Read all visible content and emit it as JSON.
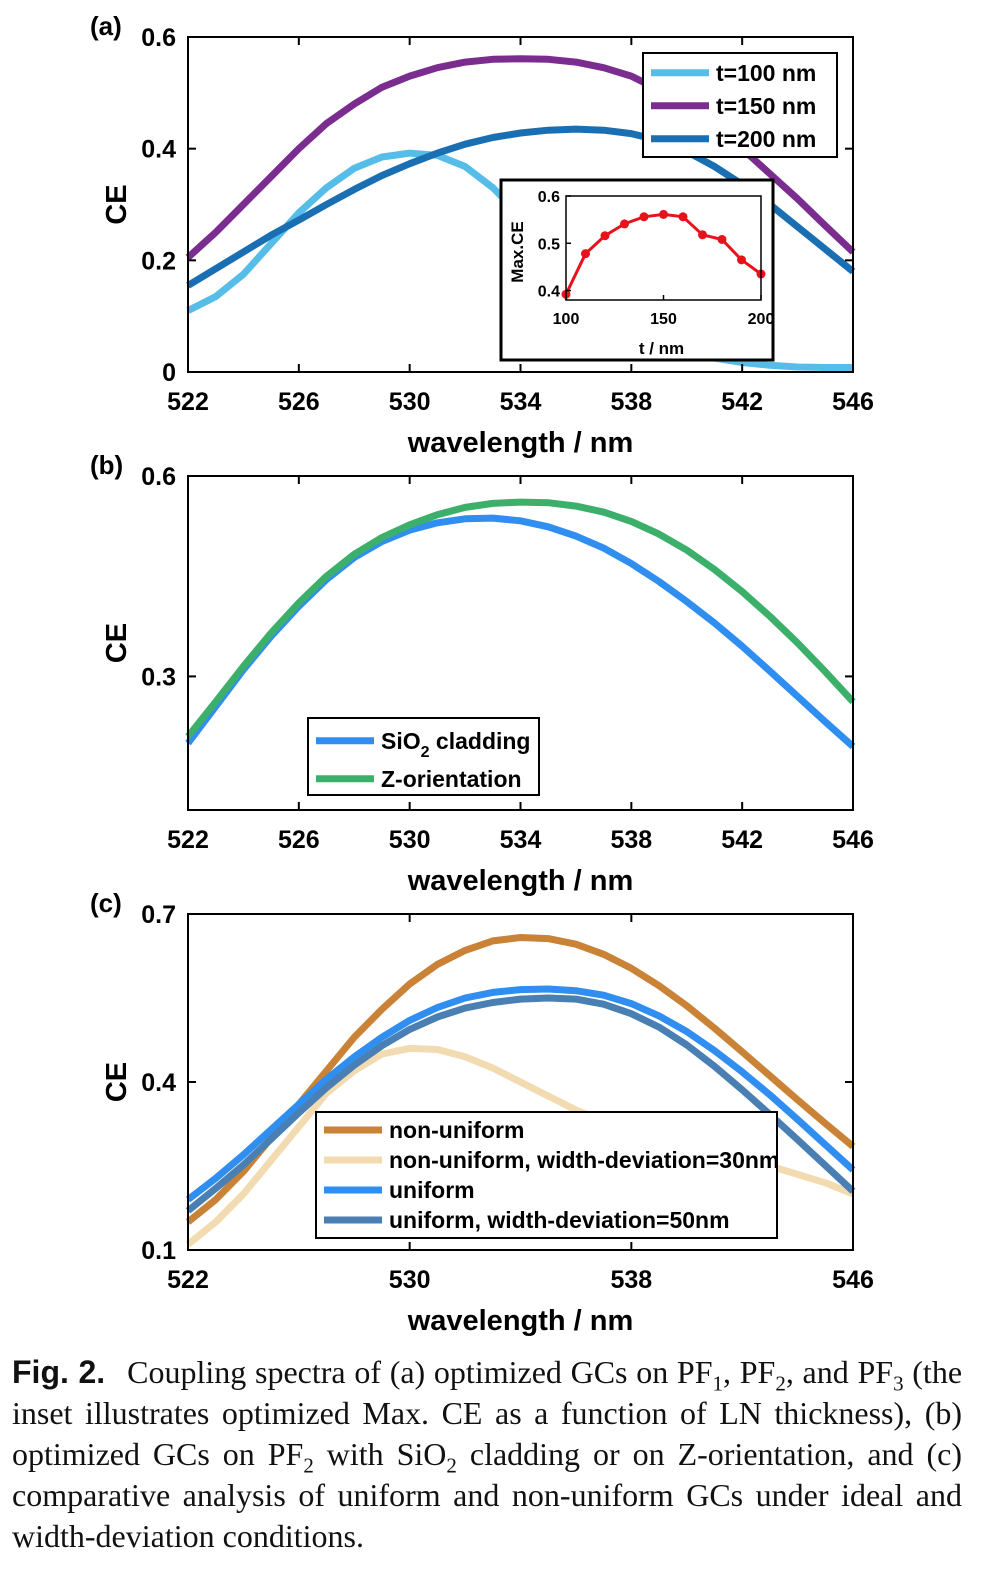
{
  "caption": {
    "figure_label": "Fig. 2.",
    "segments": [
      {
        "text": "Coupling spectra of (a) optimized GCs on PF"
      },
      {
        "text": "1",
        "sub": true
      },
      {
        "text": ", PF"
      },
      {
        "text": "2",
        "sub": true
      },
      {
        "text": ", and PF"
      },
      {
        "text": "3",
        "sub": true
      },
      {
        "text": " (the inset illustrates optimized Max. CE as a function of LN thickness), (b) optimized GCs on PF"
      },
      {
        "text": "2",
        "sub": true
      },
      {
        "text": " with SiO"
      },
      {
        "text": "2",
        "sub": true
      },
      {
        "text": " cladding or on Z-orientation, and (c) comparative analysis of uniform and non-uniform GCs under ideal and width-deviation conditions."
      }
    ]
  },
  "chart_data": [
    {
      "panel_label": "(a)",
      "type": "line",
      "xlabel": "wavelength / nm",
      "ylabel": "CE",
      "xlim": [
        522,
        546
      ],
      "ylim": [
        0,
        0.6
      ],
      "xticks": [
        522,
        526,
        530,
        534,
        538,
        542,
        546
      ],
      "yticks": [
        0,
        0.2,
        0.4,
        0.6
      ],
      "ytick_labels": [
        "0",
        "0.2",
        "0.4",
        "0.6"
      ],
      "legend_position": "top-right",
      "x": [
        522,
        523,
        524,
        525,
        526,
        527,
        528,
        529,
        530,
        531,
        532,
        533,
        534,
        535,
        536,
        537,
        538,
        539,
        540,
        541,
        542,
        543,
        544,
        545,
        546
      ],
      "series": [
        {
          "name": "t=100 nm",
          "color": "#56bde9",
          "values": [
            0.11,
            0.135,
            0.175,
            0.23,
            0.285,
            0.33,
            0.365,
            0.385,
            0.392,
            0.388,
            0.368,
            0.33,
            0.28,
            0.22,
            0.165,
            0.12,
            0.085,
            0.058,
            0.038,
            0.025,
            0.017,
            0.012,
            0.009,
            0.008,
            0.008
          ]
        },
        {
          "name": "t=150 nm",
          "color": "#7b2c8f",
          "values": [
            0.205,
            0.25,
            0.3,
            0.35,
            0.4,
            0.445,
            0.48,
            0.51,
            0.53,
            0.545,
            0.555,
            0.56,
            0.561,
            0.56,
            0.555,
            0.545,
            0.53,
            0.505,
            0.475,
            0.44,
            0.4,
            0.355,
            0.31,
            0.262,
            0.215
          ]
        },
        {
          "name": "t=200 nm",
          "color": "#1a6fb3",
          "values": [
            0.155,
            0.185,
            0.215,
            0.245,
            0.272,
            0.3,
            0.327,
            0.352,
            0.373,
            0.392,
            0.408,
            0.42,
            0.428,
            0.433,
            0.435,
            0.433,
            0.427,
            0.415,
            0.395,
            0.368,
            0.336,
            0.3,
            0.26,
            0.22,
            0.18
          ]
        }
      ],
      "inset": {
        "type": "line",
        "xlabel": "t / nm",
        "ylabel": "Max.CE",
        "xlim": [
          100,
          200
        ],
        "ylim": [
          0.38,
          0.6
        ],
        "xticks": [
          100,
          150,
          200
        ],
        "yticks": [
          0.4,
          0.5,
          0.6
        ],
        "color": "#e8121b",
        "x": [
          100,
          110,
          120,
          130,
          140,
          150,
          160,
          170,
          180,
          190,
          200
        ],
        "values": [
          0.392,
          0.478,
          0.516,
          0.541,
          0.556,
          0.561,
          0.556,
          0.518,
          0.508,
          0.465,
          0.435
        ]
      }
    },
    {
      "panel_label": "(b)",
      "type": "line",
      "xlabel": "wavelength / nm",
      "ylabel": "CE",
      "xlim": [
        522,
        546
      ],
      "ylim": [
        0.1,
        0.6
      ],
      "xticks": [
        522,
        526,
        530,
        534,
        538,
        542,
        546
      ],
      "yticks": [
        0.3,
        0.6
      ],
      "legend_position": "bottom-left",
      "x": [
        522,
        523,
        524,
        525,
        526,
        527,
        528,
        529,
        530,
        531,
        532,
        533,
        534,
        535,
        536,
        537,
        538,
        539,
        540,
        541,
        542,
        543,
        544,
        545,
        546
      ],
      "series": [
        {
          "name": "SiO2 cladding",
          "name_base": "SiO",
          "name_sub": "2",
          "name_rest": " cladding",
          "color": "#2f8ef0",
          "values": [
            0.2,
            0.255,
            0.31,
            0.36,
            0.405,
            0.445,
            0.478,
            0.502,
            0.519,
            0.53,
            0.536,
            0.537,
            0.533,
            0.524,
            0.51,
            0.492,
            0.469,
            0.442,
            0.412,
            0.38,
            0.345,
            0.308,
            0.27,
            0.232,
            0.195
          ]
        },
        {
          "name": "Z-orientation",
          "color": "#3cb06a",
          "values": [
            0.21,
            0.262,
            0.315,
            0.365,
            0.41,
            0.45,
            0.483,
            0.508,
            0.527,
            0.542,
            0.553,
            0.559,
            0.561,
            0.56,
            0.555,
            0.546,
            0.532,
            0.513,
            0.489,
            0.46,
            0.427,
            0.39,
            0.35,
            0.307,
            0.262
          ]
        }
      ]
    },
    {
      "panel_label": "(c)",
      "type": "line",
      "xlabel": "wavelength / nm",
      "ylabel": "CE",
      "xlim": [
        522,
        546
      ],
      "ylim": [
        0.1,
        0.7
      ],
      "xticks": [
        522,
        530,
        538,
        546
      ],
      "yticks": [
        0.1,
        0.4,
        0.7
      ],
      "legend_position": "bottom-right",
      "x": [
        522,
        523,
        524,
        525,
        526,
        527,
        528,
        529,
        530,
        531,
        532,
        533,
        534,
        535,
        536,
        537,
        538,
        539,
        540,
        541,
        542,
        543,
        544,
        545,
        546
      ],
      "series": [
        {
          "name": "non-uniform",
          "color": "#c98236",
          "values": [
            0.15,
            0.19,
            0.24,
            0.3,
            0.36,
            0.42,
            0.48,
            0.53,
            0.575,
            0.61,
            0.635,
            0.652,
            0.658,
            0.656,
            0.646,
            0.628,
            0.603,
            0.572,
            0.536,
            0.496,
            0.454,
            0.411,
            0.368,
            0.326,
            0.285
          ]
        },
        {
          "name": "non-uniform, width-deviation=30nm",
          "color": "#f3dbb1",
          "values": [
            0.11,
            0.15,
            0.2,
            0.26,
            0.32,
            0.38,
            0.42,
            0.45,
            0.46,
            0.458,
            0.445,
            0.425,
            0.4,
            0.375,
            0.35,
            0.33,
            0.31,
            0.295,
            0.28,
            0.27,
            0.26,
            0.25,
            0.235,
            0.22,
            0.2
          ]
        },
        {
          "name": "uniform",
          "color": "#2f8ef0",
          "values": [
            0.19,
            0.228,
            0.27,
            0.315,
            0.36,
            0.405,
            0.445,
            0.48,
            0.51,
            0.533,
            0.55,
            0.56,
            0.565,
            0.566,
            0.563,
            0.555,
            0.54,
            0.518,
            0.49,
            0.456,
            0.418,
            0.377,
            0.333,
            0.288,
            0.243
          ]
        },
        {
          "name": "uniform, width-deviation=50nm",
          "color": "#4a7fb3",
          "values": [
            0.17,
            0.21,
            0.252,
            0.298,
            0.345,
            0.39,
            0.43,
            0.465,
            0.494,
            0.516,
            0.532,
            0.542,
            0.548,
            0.55,
            0.548,
            0.539,
            0.522,
            0.498,
            0.466,
            0.428,
            0.386,
            0.342,
            0.297,
            0.251,
            0.205
          ]
        }
      ]
    }
  ]
}
